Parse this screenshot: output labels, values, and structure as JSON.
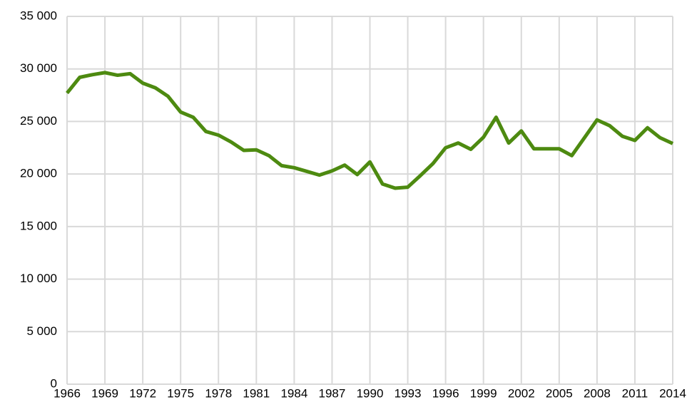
{
  "chart_data": {
    "type": "line",
    "x": [
      1966,
      1967,
      1968,
      1969,
      1970,
      1971,
      1972,
      1973,
      1974,
      1975,
      1976,
      1977,
      1978,
      1979,
      1980,
      1981,
      1982,
      1983,
      1984,
      1985,
      1986,
      1987,
      1988,
      1989,
      1990,
      1991,
      1992,
      1993,
      1994,
      1995,
      1996,
      1997,
      1998,
      1999,
      2000,
      2001,
      2002,
      2003,
      2004,
      2005,
      2006,
      2007,
      2008,
      2009,
      2010,
      2011,
      2012,
      2013,
      2014
    ],
    "series": [
      {
        "color": "#4d8a10",
        "values": [
          27700,
          29200,
          29450,
          29650,
          29400,
          29550,
          28650,
          28200,
          27400,
          25900,
          25400,
          24050,
          23700,
          23050,
          22250,
          22300,
          21750,
          20800,
          20600,
          20250,
          19900,
          20300,
          20850,
          19950,
          21150,
          19050,
          18650,
          18750,
          19850,
          21000,
          22500,
          22950,
          22350,
          23500,
          25400,
          22950,
          24100,
          22400,
          22400,
          22400,
          21750,
          23450,
          25150,
          24600,
          23600,
          23200,
          24400,
          23450,
          22900
        ]
      }
    ],
    "xlim": [
      1966,
      2014
    ],
    "xticks": [
      1966,
      1969,
      1972,
      1975,
      1978,
      1981,
      1984,
      1987,
      1990,
      1993,
      1996,
      1999,
      2002,
      2005,
      2008,
      2011,
      2014
    ],
    "ylim": [
      0,
      35000
    ],
    "yticks": [
      0,
      {
        "value": 5000,
        "label": "5 000"
      },
      {
        "value": 10000,
        "label": "10 000"
      },
      {
        "value": 15000,
        "label": "15 000"
      },
      {
        "value": 20000,
        "label": "20 000"
      },
      {
        "value": 25000,
        "label": "25 000"
      },
      {
        "value": 30000,
        "label": "30 000"
      },
      {
        "value": 35000,
        "label": "35 000"
      }
    ],
    "grid": true
  }
}
